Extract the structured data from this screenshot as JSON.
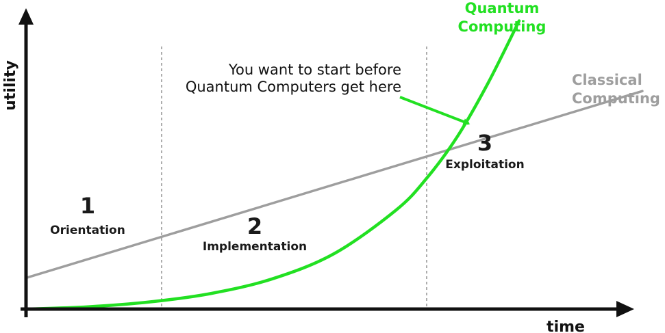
{
  "chart_data": {
    "type": "line",
    "xlabel": "time",
    "ylabel": "utility",
    "xlim": [
      0,
      100
    ],
    "ylim": [
      0,
      100
    ],
    "grid": false,
    "series": [
      {
        "name": "Classical Computing",
        "label_lines": [
          "Classical",
          "Computing"
        ],
        "color": "#9e9e9e",
        "x": [
          0,
          100
        ],
        "y": [
          11,
          77
        ]
      },
      {
        "name": "Quantum Computing",
        "label_lines": [
          "Quantum",
          "Computing"
        ],
        "color": "#22e022",
        "x": [
          0,
          10,
          20,
          30,
          40,
          50,
          60,
          65,
          70,
          75,
          80
        ],
        "y": [
          0.0,
          0.8,
          2.5,
          5.5,
          10.7,
          19.6,
          34.9,
          46.2,
          61.0,
          80.0,
          101.8
        ]
      }
    ],
    "phases": [
      {
        "number": "1",
        "name": "Orientation",
        "x_start": 0,
        "x_end": 22
      },
      {
        "number": "2",
        "name": "Implementation",
        "x_start": 22,
        "x_end": 65
      },
      {
        "number": "3",
        "name": "Exploitation",
        "x_start": 65,
        "x_end": 100
      }
    ],
    "dividers_x": [
      22,
      65
    ],
    "annotation": {
      "lines": [
        "You want to start before",
        "Quantum Computers get here"
      ],
      "arrow_color": "#22e022",
      "points_to": {
        "x": 72.5,
        "y": 65
      }
    }
  }
}
